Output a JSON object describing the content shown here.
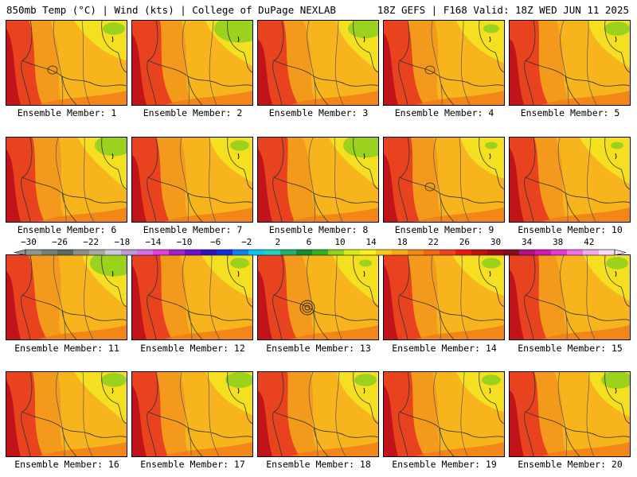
{
  "header": {
    "title_left": "850mb Temp (°C) | Wind (kts) | College of DuPage NEXLAB",
    "title_right": "18Z GEFS | F168 Valid: 18Z WED JUN 11 2025"
  },
  "panels": [
    {
      "label": "Ensemble Member: 1",
      "green": 0.35,
      "circle": "lg"
    },
    {
      "label": "Ensemble Member: 2",
      "green": 0.8,
      "circle": ""
    },
    {
      "label": "Ensemble Member: 3",
      "green": 0.55,
      "circle": ""
    },
    {
      "label": "Ensemble Member: 4",
      "green": 0.25,
      "circle": "lg"
    },
    {
      "label": "Ensemble Member: 5",
      "green": 0.4,
      "circle": ""
    },
    {
      "label": "Ensemble Member: 6",
      "green": 0.6,
      "circle": ""
    },
    {
      "label": "Ensemble Member: 7",
      "green": 0.3,
      "circle": ""
    },
    {
      "label": "Ensemble Member: 8",
      "green": 0.7,
      "circle": ""
    },
    {
      "label": "Ensemble Member: 9",
      "green": 0.2,
      "circle": "lg"
    },
    {
      "label": "Ensemble Member: 10",
      "green": 0.2,
      "circle": ""
    },
    {
      "label": "Ensemble Member: 11",
      "green": 0.75,
      "circle": ""
    },
    {
      "label": "Ensemble Member: 12",
      "green": 0.3,
      "circle": ""
    },
    {
      "label": "Ensemble Member: 13",
      "green": 0.2,
      "circle": "rings"
    },
    {
      "label": "Ensemble Member: 14",
      "green": 0.3,
      "circle": ""
    },
    {
      "label": "Ensemble Member: 15",
      "green": 0.35,
      "circle": ""
    },
    {
      "label": "Ensemble Member: 16",
      "green": 0.4,
      "circle": ""
    },
    {
      "label": "Ensemble Member: 17",
      "green": 0.45,
      "circle": ""
    },
    {
      "label": "Ensemble Member: 18",
      "green": 0.35,
      "circle": ""
    },
    {
      "label": "Ensemble Member: 19",
      "green": 0.3,
      "circle": ""
    },
    {
      "label": "Ensemble Member: 20",
      "green": 0.5,
      "circle": ""
    }
  ],
  "colorbar": {
    "tick_labels": [
      "−30",
      "−26",
      "−22",
      "−18",
      "−14",
      "−10",
      "−6",
      "−2",
      "2",
      "6",
      "10",
      "14",
      "18",
      "22",
      "26",
      "30",
      "34",
      "38",
      "42"
    ],
    "colors": [
      "#8a9a90",
      "#6f8278",
      "#5a6a62",
      "#8c8c8c",
      "#a8a8a8",
      "#c8c8e0",
      "#b79ad6",
      "#d070e8",
      "#e040e0",
      "#a020d0",
      "#7010c8",
      "#3010c0",
      "#1030e0",
      "#1080f0",
      "#10c0f0",
      "#20d0c0",
      "#20b070",
      "#109030",
      "#30b020",
      "#90d020",
      "#d8e820",
      "#f8f020",
      "#f8c820",
      "#f8a818",
      "#f08818",
      "#f06818",
      "#f04020",
      "#e81818",
      "#c01010",
      "#a00c18",
      "#880c20",
      "#b0108a",
      "#d01ab8",
      "#e838d8",
      "#f070e8",
      "#f4a8f0",
      "#f8d8f8"
    ]
  }
}
